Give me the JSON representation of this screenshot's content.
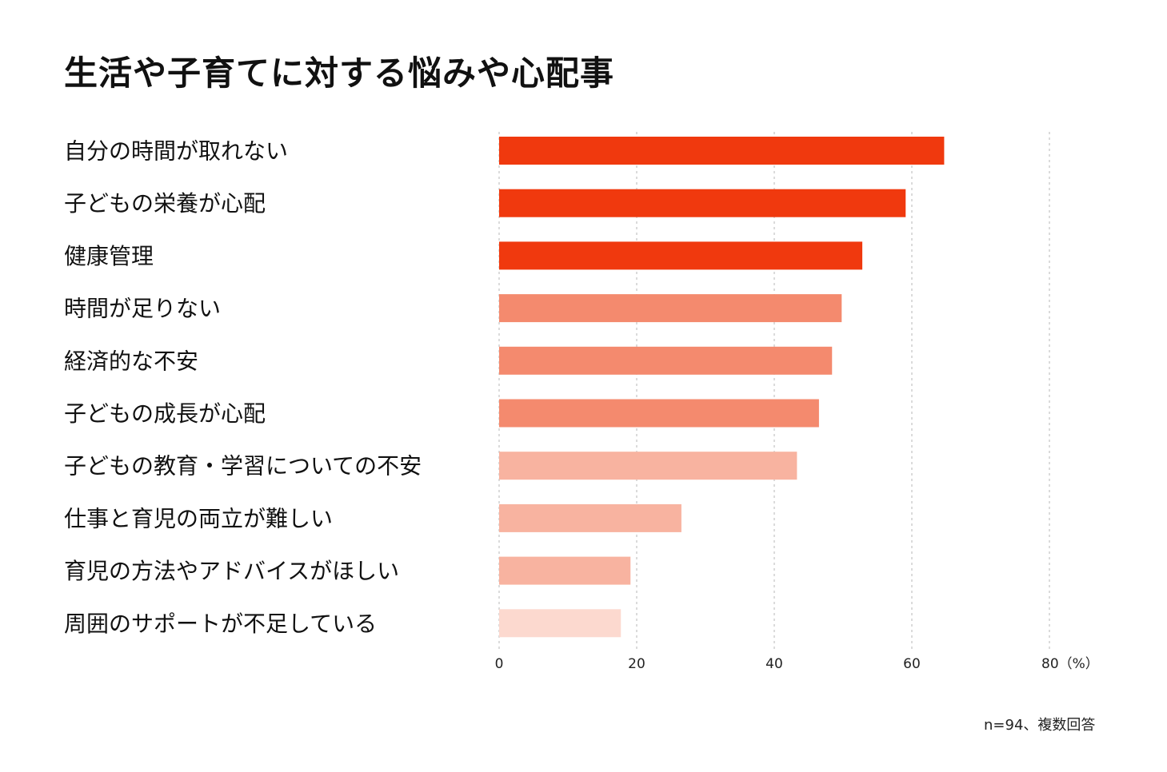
{
  "chart_data": {
    "type": "bar",
    "orientation": "horizontal",
    "title": "生活や子育てに対する悩みや心配事",
    "categories": [
      "自分の時間が取れない",
      "子どもの栄養が心配",
      "健康管理",
      "時間が足りない",
      "経済的な不安",
      "子どもの成長が心配",
      "子どもの教育・学習についての不安",
      "仕事と育児の両立が難しい",
      "育児の方法やアドバイスがほしい",
      "周囲のサポートが不足している"
    ],
    "values": [
      64.7,
      59.1,
      52.8,
      49.8,
      48.4,
      46.5,
      43.3,
      26.5,
      19.1,
      17.7
    ],
    "colors": [
      "#f0390e",
      "#f0390e",
      "#f0390e",
      "#f48a6e",
      "#f48a6e",
      "#f48a6e",
      "#f8b3a0",
      "#f8b3a0",
      "#f8b3a0",
      "#fcd9cf"
    ],
    "xlim": [
      0,
      80
    ],
    "xticks": [
      "0",
      "20",
      "40",
      "60",
      "80（%）"
    ],
    "xtick_values": [
      0,
      20,
      40,
      60,
      80
    ],
    "grid": true,
    "note": "n=94、複数回答"
  }
}
